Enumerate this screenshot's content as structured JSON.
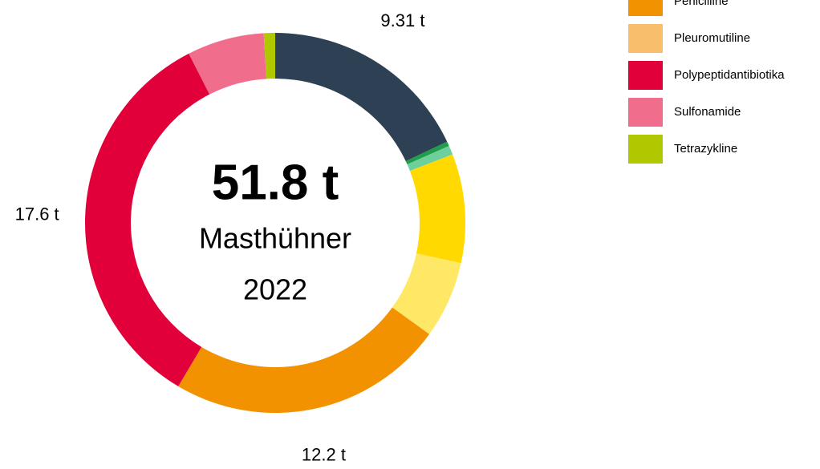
{
  "chart_data": {
    "type": "donut",
    "center_text": [
      "51.8 t",
      "Masthühner",
      "2022"
    ],
    "categories": [
      null,
      null,
      null,
      null,
      null,
      "Penicilline",
      "Polypeptidantibiotika",
      "Sulfonamide",
      "Tetrazykline"
    ],
    "values": [
      9.31,
      0.2,
      0.4,
      4.8,
      3.4,
      12.2,
      17.6,
      3.39,
      0.5
    ],
    "value_labels": [
      "9.31 t",
      null,
      null,
      null,
      null,
      "12.2 t",
      "17.6 t",
      null,
      null
    ],
    "colors": [
      "#2e4053",
      "#1e9e4a",
      "#6dcf9b",
      "#ffd900",
      "#ffe866",
      "#f39200",
      "#e2003a",
      "#f06d8c",
      "#b0c800"
    ],
    "legend": [
      {
        "name": "Penicilline",
        "color": "#f39200"
      },
      {
        "name": "Pleuromutiline",
        "color": "#f8be6c"
      },
      {
        "name": "Polypeptidantibiotika",
        "color": "#e2003a"
      },
      {
        "name": "Sulfonamide",
        "color": "#f06d8c"
      },
      {
        "name": "Tetrazykline",
        "color": "#b0c800"
      }
    ]
  }
}
